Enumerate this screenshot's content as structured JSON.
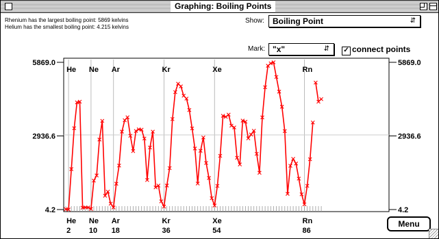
{
  "window": {
    "title": "Graphing: Boiling Points"
  },
  "info": {
    "largest": "Rhenium has the largest boiling point: 5869 kelvins",
    "smallest": "Helium has the smallest boiling point: 4.215 kelvins"
  },
  "controls": {
    "show_label": "Show:",
    "show_value": "Boiling Point",
    "mark_label": "Mark:",
    "mark_value": "\"x\"",
    "connect_label": "connect points",
    "connect_checked": true,
    "menu_button": "Menu"
  },
  "colors": {
    "series": "#ff0000",
    "gridline": "#bbbbbb"
  },
  "chart_data": {
    "type": "line",
    "ylim": [
      4.2,
      5869.0
    ],
    "xlim": [
      1,
      92
    ],
    "ytick_labels": [
      "5869.0",
      "2936.6",
      "4.2"
    ],
    "y_ticks": [
      5869.0,
      2936.6,
      4.2
    ],
    "top_labels": [
      {
        "x": 2,
        "label": "He"
      },
      {
        "x": 10,
        "label": "Ne"
      },
      {
        "x": 18,
        "label": "Ar"
      },
      {
        "x": 36,
        "label": "Kr"
      },
      {
        "x": 54,
        "label": "Xe"
      },
      {
        "x": 86,
        "label": "Rn"
      }
    ],
    "bottom_labels": [
      {
        "x": 2,
        "symbol": "He",
        "number": "2"
      },
      {
        "x": 10,
        "symbol": "Ne",
        "number": "10"
      },
      {
        "x": 18,
        "symbol": "Ar",
        "number": "18"
      },
      {
        "x": 36,
        "symbol": "Kr",
        "number": "36"
      },
      {
        "x": 54,
        "symbol": "Xe",
        "number": "54"
      },
      {
        "x": 86,
        "symbol": "Rn",
        "number": "86"
      }
    ],
    "series": [
      {
        "x": [
          1,
          2,
          3,
          4,
          5,
          6,
          7,
          8,
          9,
          10,
          11,
          12,
          13,
          14,
          15,
          16,
          17,
          18,
          19,
          20,
          21,
          22,
          23,
          24,
          25,
          26,
          27,
          28,
          29,
          30,
          31,
          32,
          33,
          34,
          35,
          36,
          37,
          38,
          39,
          40,
          41,
          42,
          43,
          44,
          45,
          46,
          47,
          48,
          49,
          50,
          51,
          52,
          53,
          54,
          55,
          56,
          57,
          58,
          59,
          60,
          61,
          62,
          63,
          64,
          65,
          66,
          67,
          68,
          69,
          70,
          71,
          72,
          73,
          74,
          75,
          76,
          77,
          78,
          79,
          80,
          81,
          82,
          83,
          84,
          85,
          86,
          87,
          88,
          89
        ],
        "values": [
          20.3,
          4.2,
          1615,
          3243,
          4273,
          4300,
          77,
          90,
          85,
          27,
          1156,
          1363,
          2792,
          3538,
          553,
          718,
          239,
          87,
          1032,
          1757,
          3109,
          3560,
          3680,
          2944,
          2334,
          3134,
          3200,
          3186,
          2835,
          1180,
          2477,
          3106,
          887,
          958,
          332,
          120,
          961,
          1655,
          3609,
          4682,
          5017,
          4912,
          4538,
          4423,
          3968,
          3236,
          2435,
          1040,
          2345,
          2875,
          1860,
          1261,
          457,
          165,
          944,
          2143,
          3737,
          3697,
          3785,
          3347,
          3273,
          2067,
          1802,
          3546,
          3503,
          2840,
          2993,
          3141,
          2223,
          1469,
          3675,
          4876,
          5731,
          5828,
          5869,
          5285,
          4701,
          4098,
          3129,
          630,
          1746,
          2022,
          1837,
          1235,
          610,
          211,
          950,
          2010,
          3471
        ]
      },
      {
        "x": [
          90,
          91,
          92
        ],
        "values": [
          5061,
          4300,
          4404
        ]
      }
    ]
  }
}
